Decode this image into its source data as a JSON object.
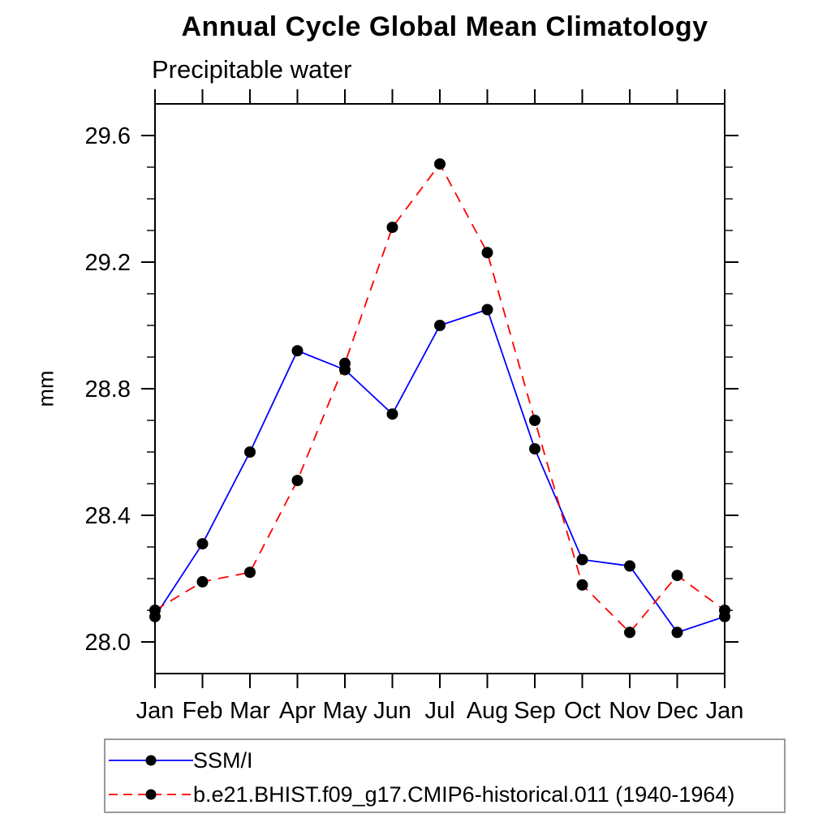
{
  "chart_data": {
    "type": "line",
    "title": "Annual Cycle Global Mean Climatology",
    "subtitle": "Precipitable water",
    "ylabel": "mm",
    "xlabel": "",
    "categories": [
      "Jan",
      "Feb",
      "Mar",
      "Apr",
      "May",
      "Jun",
      "Jul",
      "Aug",
      "Sep",
      "Oct",
      "Nov",
      "Dec",
      "Jan"
    ],
    "series": [
      {
        "name": "SSM/I",
        "color": "#0000ff",
        "style": "solid",
        "marker": "circle",
        "marker_color": "#000000",
        "values": [
          28.08,
          28.31,
          28.6,
          28.92,
          28.86,
          28.72,
          29.0,
          29.05,
          28.61,
          28.26,
          28.24,
          28.03,
          28.08
        ]
      },
      {
        "name": "b.e21.BHIST.f09_g17.CMIP6-historical.011 (1940-1964)",
        "color": "#ff0000",
        "style": "dashed",
        "marker": "circle",
        "marker_color": "#000000",
        "values": [
          28.1,
          28.19,
          28.22,
          28.51,
          28.88,
          29.31,
          29.51,
          29.23,
          28.7,
          28.18,
          28.03,
          28.21,
          28.1
        ]
      }
    ],
    "ylim": [
      27.9,
      29.7
    ],
    "yticks_major": [
      28.0,
      28.4,
      28.8,
      29.2,
      29.6
    ],
    "ytick_labels": [
      "28.0",
      "28.4",
      "28.8",
      "29.2",
      "29.6"
    ],
    "minor_step": 0.1,
    "grid": false,
    "legend_position": "bottom-left-box"
  }
}
